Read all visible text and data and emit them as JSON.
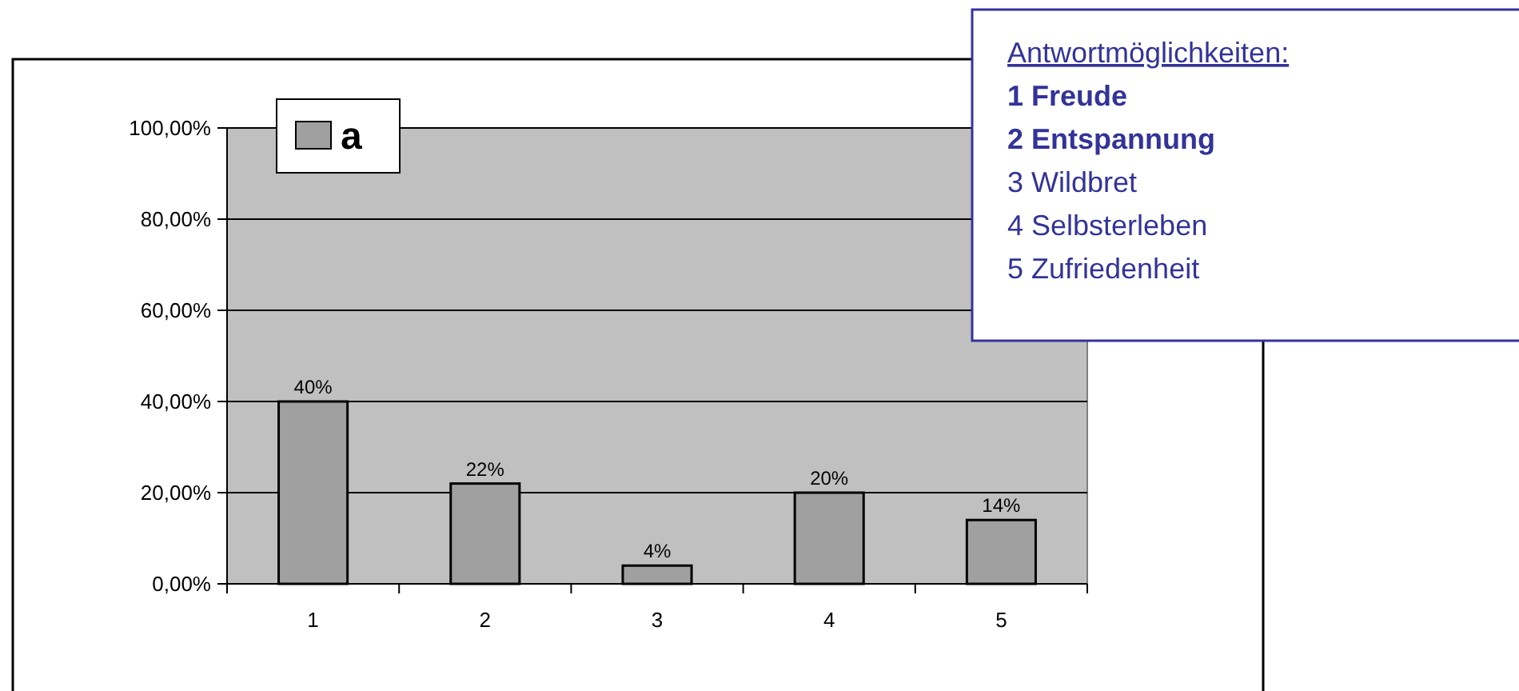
{
  "chart_data": {
    "type": "bar",
    "categories": [
      "1",
      "2",
      "3",
      "4",
      "5"
    ],
    "series": [
      {
        "name": "a",
        "color": "#a0a0a0",
        "values": [
          40,
          22,
          4,
          20,
          14
        ],
        "value_labels": [
          "40%",
          "22%",
          "4%",
          "20%",
          "14%"
        ]
      }
    ],
    "ylim": [
      0,
      100
    ],
    "yticks": [
      {
        "value": 0,
        "label": "0,00%"
      },
      {
        "value": 20,
        "label": "20,00%"
      },
      {
        "value": 40,
        "label": "40,00%"
      },
      {
        "value": 60,
        "label": "60,00%"
      },
      {
        "value": 80,
        "label": "80,00%"
      },
      {
        "value": 100,
        "label": "100,00%"
      }
    ],
    "grid": "y",
    "legend": "top left",
    "annotations": [
      "Antwortmöglichkeiten:",
      "1  Freude",
      "2  Entspannung",
      "3  Wildbret",
      "4  Selbsterleben",
      "5  Zufriedenheit"
    ]
  }
}
